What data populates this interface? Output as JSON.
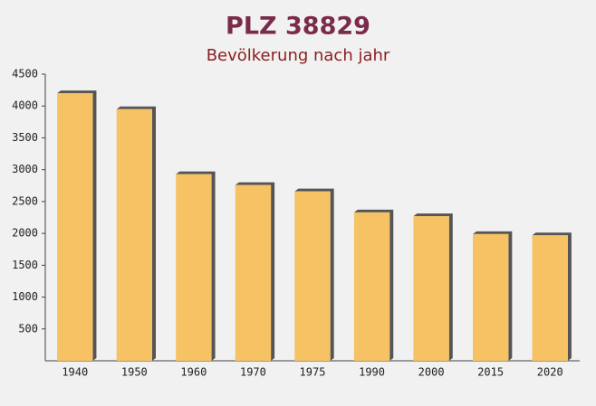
{
  "chart_data": {
    "type": "bar",
    "title": "PLZ 38829",
    "subtitle": "Bevölkerung nach jahr",
    "categories": [
      "1940",
      "1950",
      "1960",
      "1970",
      "1975",
      "1990",
      "2000",
      "2015",
      "2020"
    ],
    "values": [
      4200,
      3950,
      2930,
      2760,
      2660,
      2330,
      2270,
      1990,
      1970
    ],
    "color": "#f7c263",
    "ylim": [
      0,
      4500
    ],
    "yticks": [
      500,
      1000,
      1500,
      2000,
      2500,
      3000,
      3500,
      4000,
      4500
    ]
  }
}
